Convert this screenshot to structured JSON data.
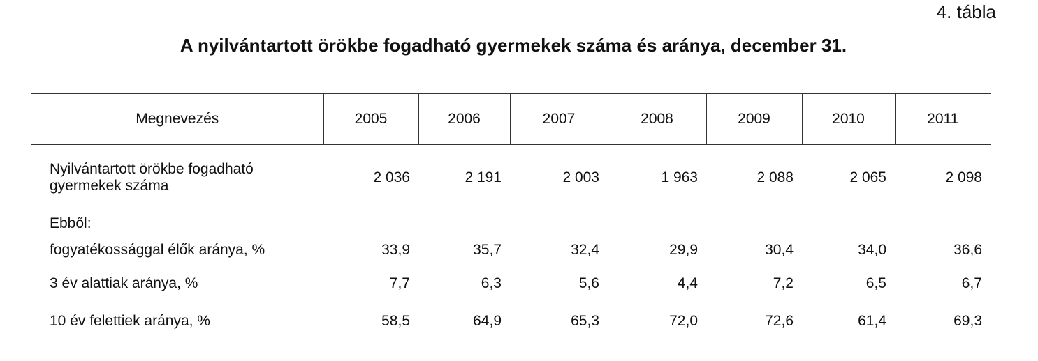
{
  "table_label": "4. tábla",
  "title": "A nyilvántartott örökbe fogadható gyermekek száma és aránya, december 31.",
  "columns": [
    "Megnevezés",
    "2005",
    "2006",
    "2007",
    "2008",
    "2009",
    "2010",
    "2011"
  ],
  "rows": [
    {
      "label_line1": "Nyilvántartott örökbe fogadható",
      "label_line2": "gyermekek száma",
      "values": [
        "2 036",
        "2 191",
        "2 003",
        "1 963",
        "2 088",
        "2 065",
        "2 098"
      ]
    },
    {
      "label": "Ebből:",
      "values": []
    },
    {
      "label": "fogyatékossággal élők aránya, %",
      "values": [
        "33,9",
        "35,7",
        "32,4",
        "29,9",
        "30,4",
        "34,0",
        "36,6"
      ]
    },
    {
      "label": "3 év alattiak aránya, %",
      "values": [
        "7,7",
        "6,3",
        "5,6",
        "4,4",
        "7,2",
        "6,5",
        "6,7"
      ]
    },
    {
      "label": "10 év felettiek aránya, %",
      "values": [
        "58,5",
        "64,9",
        "65,3",
        "72,0",
        "72,6",
        "61,4",
        "69,3"
      ]
    }
  ]
}
